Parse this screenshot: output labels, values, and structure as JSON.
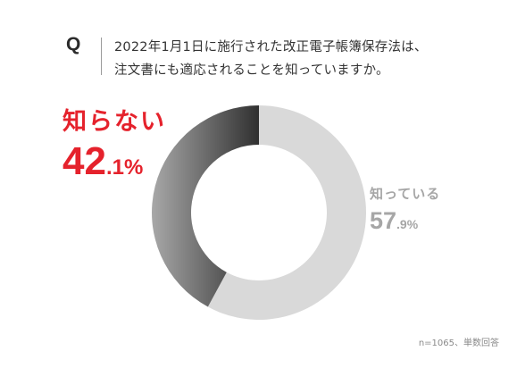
{
  "question": {
    "mark": "Q",
    "line1": "2022年1月1日に施行された改正電子帳簿保存法は、",
    "line2": "注文書にも適応されることを知っていますか。"
  },
  "chart_data": {
    "type": "pie",
    "variant": "donut",
    "start_angle": "top",
    "direction": "clockwise",
    "slices": [
      {
        "label": "知っている",
        "value": 57.9,
        "display_int": "57",
        "display_dec": ".9%",
        "color": "#d9d9d9"
      },
      {
        "label": "知らない",
        "value": 42.1,
        "display_int": "42",
        "display_dec": ".1%",
        "color_start": "#a8a8a8",
        "color_end": "#303030"
      }
    ]
  },
  "note": "n=1065、単数回答",
  "colors": {
    "accent": "#e5222c",
    "known_text": "#a6a6a6"
  }
}
